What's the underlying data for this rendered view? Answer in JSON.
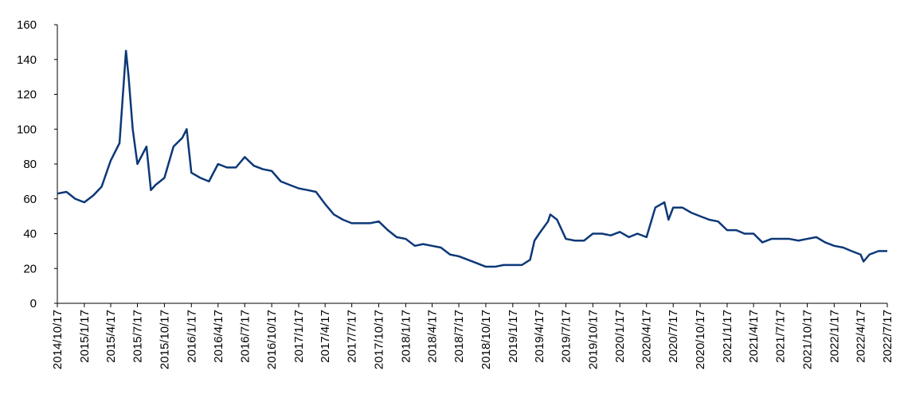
{
  "chart_data": {
    "type": "line",
    "x": [
      "2014/10/17",
      "2014/11/17",
      "2014/12/17",
      "2015/1/17",
      "2015/2/17",
      "2015/3/17",
      "2015/4/17",
      "2015/5/17",
      "2015/6/8",
      "2015/6/17",
      "2015/7/1",
      "2015/7/17",
      "2015/8/17",
      "2015/9/1",
      "2015/9/17",
      "2015/10/17",
      "2015/11/17",
      "2015/12/17",
      "2016/1/1",
      "2016/1/17",
      "2016/2/17",
      "2016/3/17",
      "2016/4/17",
      "2016/5/17",
      "2016/6/17",
      "2016/7/17",
      "2016/8/17",
      "2016/9/17",
      "2016/10/17",
      "2016/11/17",
      "2016/12/17",
      "2017/1/17",
      "2017/2/17",
      "2017/3/17",
      "2017/4/17",
      "2017/5/17",
      "2017/6/17",
      "2017/7/17",
      "2017/8/17",
      "2017/9/17",
      "2017/10/17",
      "2017/11/17",
      "2017/12/17",
      "2018/1/17",
      "2018/2/17",
      "2018/3/17",
      "2018/4/17",
      "2018/5/17",
      "2018/6/17",
      "2018/7/17",
      "2018/8/17",
      "2018/9/17",
      "2018/10/17",
      "2018/11/17",
      "2018/12/17",
      "2019/1/17",
      "2019/2/17",
      "2019/3/17",
      "2019/4/1",
      "2019/4/17",
      "2019/5/17",
      "2019/5/25",
      "2019/6/17",
      "2019/7/17",
      "2019/8/17",
      "2019/9/17",
      "2019/10/17",
      "2019/11/17",
      "2019/12/17",
      "2020/1/17",
      "2020/2/17",
      "2020/3/17",
      "2020/4/17",
      "2020/5/17",
      "2020/6/17",
      "2020/7/1",
      "2020/7/17",
      "2020/8/17",
      "2020/9/17",
      "2020/10/17",
      "2020/11/17",
      "2020/12/17",
      "2021/1/17",
      "2021/2/17",
      "2021/3/17",
      "2021/4/17",
      "2021/5/17",
      "2021/6/17",
      "2021/7/17",
      "2021/8/17",
      "2021/9/17",
      "2021/10/17",
      "2021/11/17",
      "2021/12/17",
      "2022/1/17",
      "2022/2/17",
      "2022/3/17",
      "2022/4/17",
      "2022/4/27",
      "2022/5/17",
      "2022/6/17",
      "2022/7/17"
    ],
    "series": [
      {
        "color": "#0c3878",
        "values": [
          63,
          64,
          60,
          58,
          62,
          67,
          82,
          92,
          145,
          130,
          100,
          80,
          90,
          65,
          68,
          72,
          90,
          95,
          100,
          75,
          72,
          70,
          80,
          78,
          78,
          84,
          79,
          77,
          76,
          70,
          68,
          66,
          65,
          64,
          57,
          51,
          48,
          46,
          46,
          46,
          47,
          42,
          38,
          37,
          33,
          34,
          33,
          32,
          28,
          27,
          25,
          23,
          21,
          21,
          22,
          22,
          22,
          25,
          36,
          40,
          47,
          51,
          48,
          37,
          36,
          36,
          40,
          40,
          39,
          41,
          38,
          40,
          38,
          55,
          58,
          48,
          55,
          55,
          52,
          50,
          48,
          47,
          42,
          42,
          40,
          40,
          35,
          37,
          37,
          37,
          36,
          37,
          38,
          35,
          33,
          32,
          30,
          28,
          24,
          28,
          30,
          30
        ]
      }
    ],
    "xlim": [
      "2014/10/17",
      "2022/7/17"
    ],
    "xticks": [
      "2014/10/17",
      "2015/1/17",
      "2015/4/17",
      "2015/7/17",
      "2015/10/17",
      "2016/1/17",
      "2016/4/17",
      "2016/7/17",
      "2016/10/17",
      "2017/1/17",
      "2017/4/17",
      "2017/7/17",
      "2017/10/17",
      "2018/1/17",
      "2018/4/17",
      "2018/7/17",
      "2018/10/17",
      "2019/1/17",
      "2019/4/17",
      "2019/7/17",
      "2019/10/17",
      "2020/1/17",
      "2020/4/17",
      "2020/7/17",
      "2020/10/17",
      "2021/1/17",
      "2021/4/17",
      "2021/7/17",
      "2021/10/17",
      "2022/1/17",
      "2022/4/17",
      "2022/7/17"
    ],
    "ylim": [
      0,
      160
    ],
    "yticks": [
      0,
      20,
      40,
      60,
      80,
      100,
      120,
      140,
      160
    ]
  }
}
